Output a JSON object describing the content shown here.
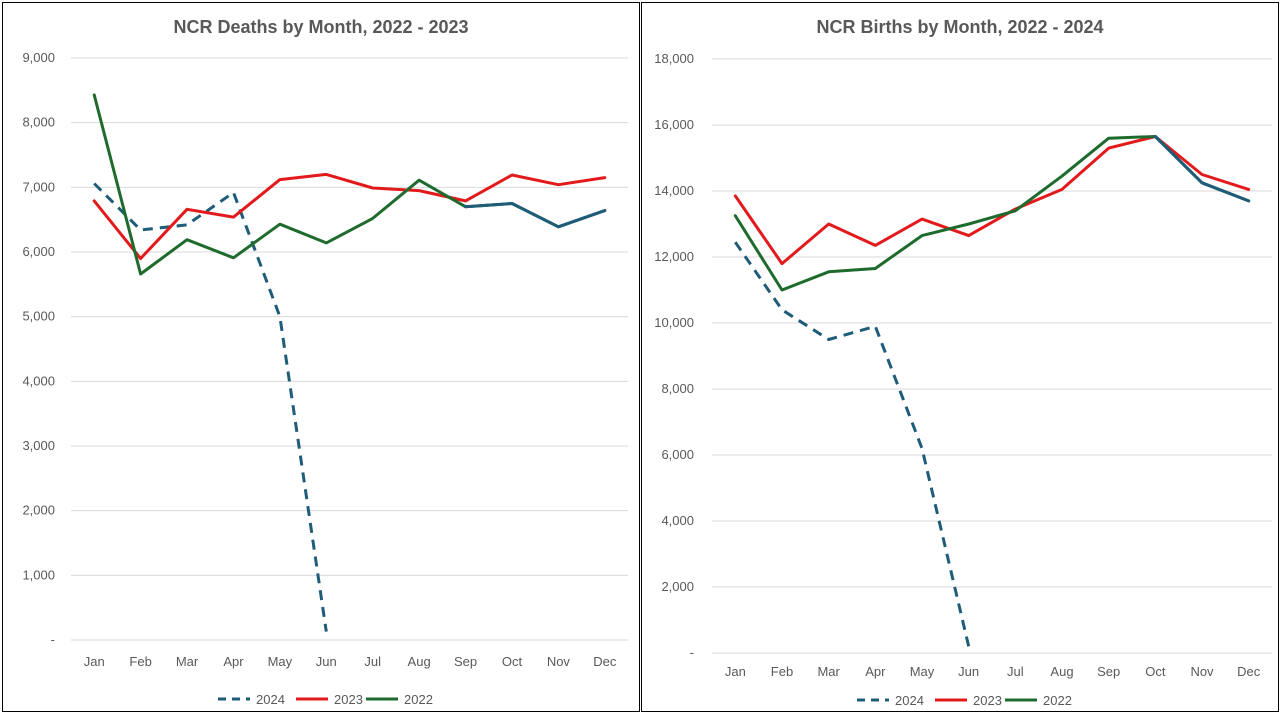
{
  "chart_data": [
    {
      "type": "line",
      "title": "NCR Deaths by Month,  2022 - 2023",
      "categories": [
        "Jan",
        "Feb",
        "Mar",
        "Apr",
        "May",
        "Jun",
        "Jul",
        "Aug",
        "Sep",
        "Oct",
        "Nov",
        "Dec"
      ],
      "ylim": [
        0,
        9000
      ],
      "yticks": [
        0,
        1000,
        2000,
        3000,
        4000,
        5000,
        6000,
        7000,
        8000,
        9000
      ],
      "ytick_labels": [
        "-",
        "1,000",
        "2,000",
        "3,000",
        "4,000",
        "5,000",
        "6,000",
        "7,000",
        "8,000",
        "9,000"
      ],
      "grid": true,
      "legend_position": "bottom",
      "series": [
        {
          "name": "2024",
          "color": "#1f5c7a",
          "dashed": true,
          "values": [
            7060,
            6340,
            6420,
            6920,
            5000,
            130,
            null,
            null,
            null,
            null,
            null,
            null
          ]
        },
        {
          "name": "2023",
          "color": "#e31a1c",
          "dashed": false,
          "values": [
            6790,
            5900,
            6660,
            6540,
            7120,
            7200,
            6990,
            6950,
            6790,
            7190,
            7040,
            7150
          ]
        },
        {
          "name": "2022",
          "color": "#1e6b2d",
          "dashed": false,
          "overlay_color": "#1f5c7a",
          "overlay_from": 8,
          "values": [
            8430,
            5660,
            6190,
            5910,
            6430,
            6140,
            6520,
            7110,
            6700,
            6750,
            6390,
            6640
          ]
        }
      ]
    },
    {
      "type": "line",
      "title": "NCR Births by Month,  2022 - 2024",
      "categories": [
        "Jan",
        "Feb",
        "Mar",
        "Apr",
        "May",
        "Jun",
        "Jul",
        "Aug",
        "Sep",
        "Oct",
        "Nov",
        "Dec"
      ],
      "ylim": [
        0,
        18000
      ],
      "yticks": [
        0,
        2000,
        4000,
        6000,
        8000,
        10000,
        12000,
        14000,
        16000,
        18000
      ],
      "ytick_labels": [
        "-",
        "2,000",
        "4,000",
        "6,000",
        "8,000",
        "10,000",
        "12,000",
        "14,000",
        "16,000",
        "18,000"
      ],
      "grid": true,
      "legend_position": "bottom",
      "series": [
        {
          "name": "2024",
          "color": "#1f5c7a",
          "dashed": true,
          "values": [
            12450,
            10400,
            9500,
            9900,
            6200,
            200,
            null,
            null,
            null,
            null,
            null,
            null
          ]
        },
        {
          "name": "2023",
          "color": "#e31a1c",
          "dashed": false,
          "values": [
            13850,
            11800,
            13000,
            12350,
            13150,
            12650,
            13450,
            14050,
            15300,
            15650,
            14500,
            14050
          ]
        },
        {
          "name": "2022",
          "color": "#1e6b2d",
          "dashed": false,
          "overlay_color": "#1f5c7a",
          "overlay_from": 9,
          "values": [
            13250,
            11000,
            11550,
            11650,
            12650,
            13000,
            13400,
            14450,
            15600,
            15650,
            14250,
            13700
          ]
        }
      ]
    }
  ]
}
